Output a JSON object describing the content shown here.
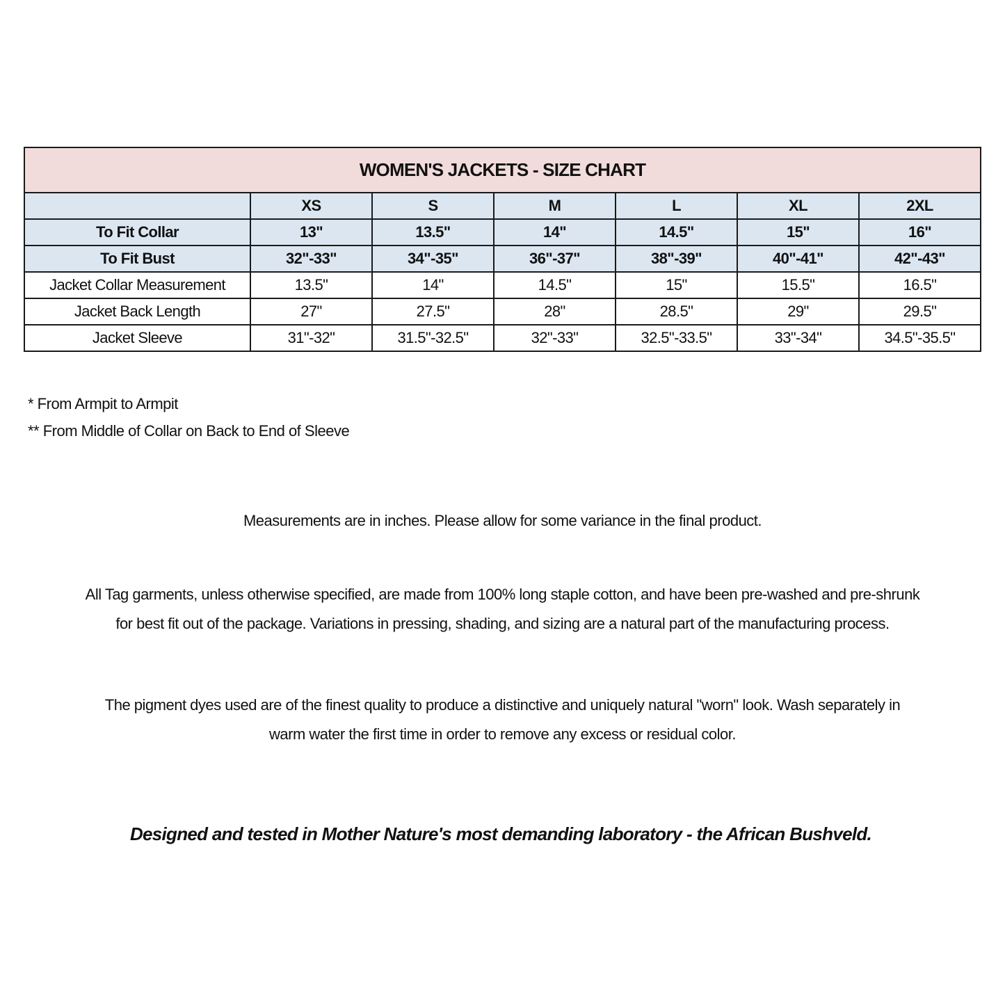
{
  "table": {
    "title": "WOMEN'S JACKETS - SIZE CHART",
    "sizes": [
      "XS",
      "S",
      "M",
      "L",
      "XL",
      "2XL"
    ],
    "rows": [
      {
        "label": "To Fit Collar",
        "values": [
          "13\"",
          "13.5\"",
          "14\"",
          "14.5\"",
          "15\"",
          "16\""
        ]
      },
      {
        "label": "To Fit Bust",
        "values": [
          "32\"-33\"",
          "34\"-35\"",
          "36\"-37\"",
          "38\"-39\"",
          "40\"-41\"",
          "42\"-43\""
        ]
      },
      {
        "label": "Jacket Collar Measurement",
        "values": [
          "13.5\"",
          "14\"",
          "14.5\"",
          "15\"",
          "15.5\"",
          "16.5\""
        ]
      },
      {
        "label": "Jacket Back Length",
        "values": [
          "27\"",
          "27.5\"",
          "28\"",
          "28.5\"",
          "29\"",
          "29.5\""
        ]
      },
      {
        "label": "Jacket Sleeve",
        "values": [
          "31\"-32\"",
          "31.5\"-32.5\"",
          "32\"-33\"",
          "32.5\"-33.5\"",
          "33\"-34\"",
          "34.5\"-35.5\""
        ]
      }
    ]
  },
  "notes": [
    "* From Armpit to Armpit",
    "** From Middle of Collar on Back to End of Sleeve"
  ],
  "paragraphs": [
    [
      "Measurements are in inches. Please allow for some variance in the final product."
    ],
    [
      "All Tag garments, unless otherwise specified, are made from 100% long staple cotton, and have been pre-washed and pre-shrunk",
      "for best fit out of the package. Variations in pressing, shading, and sizing are a natural part of the manufacturing process."
    ],
    [
      "The pigment dyes used are of the finest quality to produce a distinctive and uniquely natural \"worn\" look. Wash separately in",
      "warm water the first time in order to remove any excess or residual color."
    ]
  ],
  "tagline": "Designed and tested in Mother Nature's most demanding laboratory - the African Bushveld.",
  "colors": {
    "title_bg": "#f2dcdb",
    "header_bg": "#dce6f1"
  }
}
